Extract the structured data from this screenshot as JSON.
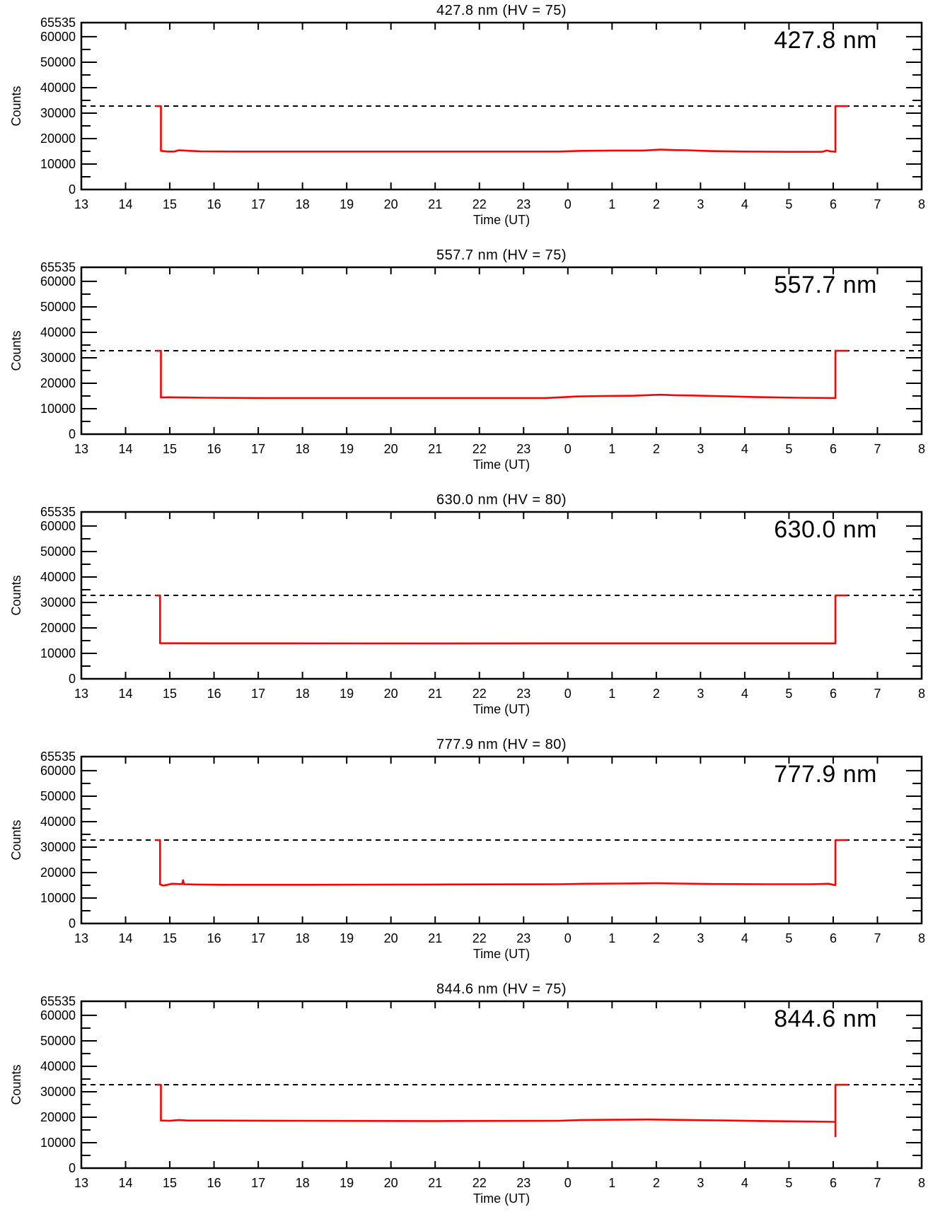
{
  "figure": {
    "background": "#ffffff",
    "axis_color": "#000000",
    "trace_color": "#ff0000",
    "x_span_hours": 19,
    "x_unit": "hours after 13:00 UT",
    "x_tick_labels": [
      "13",
      "14",
      "15",
      "16",
      "17",
      "18",
      "19",
      "20",
      "21",
      "22",
      "23",
      "0",
      "1",
      "2",
      "3",
      "4",
      "5",
      "6",
      "7",
      "8"
    ],
    "y_tick_values": [
      0,
      10000,
      20000,
      30000,
      40000,
      50000,
      60000,
      65535
    ],
    "y_tick_labels": [
      "0",
      "10000",
      "20000",
      "30000",
      "40000",
      "50000",
      "60000",
      "65535"
    ],
    "y_minor_step": 5000,
    "ylim": [
      0,
      65535
    ]
  },
  "chart_data": [
    {
      "type": "line",
      "title": "427.8 nm (HV = 75)",
      "panel_label": "427.8 nm",
      "xlabel": "Time (UT)",
      "ylabel": "Counts",
      "ylim": [
        0,
        65535
      ],
      "threshold": 32767,
      "grid": false,
      "series": [
        {
          "name": "counts",
          "color": "#ff0000",
          "points": [
            [
              1.7,
              32767
            ],
            [
              1.8,
              32767
            ],
            [
              1.8,
              15200
            ],
            [
              1.95,
              14900
            ],
            [
              2.1,
              14900
            ],
            [
              2.2,
              15400
            ],
            [
              2.45,
              15200
            ],
            [
              2.7,
              15000
            ],
            [
              3.5,
              14900
            ],
            [
              6.0,
              14900
            ],
            [
              9.0,
              14900
            ],
            [
              10.8,
              14900
            ],
            [
              11.3,
              15200
            ],
            [
              12.0,
              15300
            ],
            [
              12.7,
              15300
            ],
            [
              13.1,
              15700
            ],
            [
              13.4,
              15500
            ],
            [
              13.7,
              15400
            ],
            [
              14.2,
              15100
            ],
            [
              15.0,
              14900
            ],
            [
              16.0,
              14800
            ],
            [
              16.75,
              14800
            ],
            [
              16.85,
              15300
            ],
            [
              16.95,
              15000
            ],
            [
              17.05,
              14800
            ],
            [
              17.05,
              32767
            ],
            [
              17.32,
              32767
            ]
          ]
        }
      ]
    },
    {
      "type": "line",
      "title": "557.7 nm (HV = 75)",
      "panel_label": "557.7 nm",
      "xlabel": "Time (UT)",
      "ylabel": "Counts",
      "ylim": [
        0,
        65535
      ],
      "threshold": 32767,
      "grid": false,
      "series": [
        {
          "name": "counts",
          "color": "#ff0000",
          "points": [
            [
              1.7,
              32767
            ],
            [
              1.8,
              32767
            ],
            [
              1.8,
              14400
            ],
            [
              2.0,
              14500
            ],
            [
              2.3,
              14400
            ],
            [
              2.8,
              14300
            ],
            [
              4.0,
              14200
            ],
            [
              7.0,
              14200
            ],
            [
              10.5,
              14200
            ],
            [
              11.2,
              14800
            ],
            [
              11.8,
              15000
            ],
            [
              12.5,
              15100
            ],
            [
              13.1,
              15500
            ],
            [
              13.4,
              15300
            ],
            [
              13.8,
              15200
            ],
            [
              14.3,
              15000
            ],
            [
              15.2,
              14600
            ],
            [
              16.2,
              14300
            ],
            [
              17.05,
              14200
            ],
            [
              17.05,
              32767
            ],
            [
              17.32,
              32767
            ]
          ]
        }
      ]
    },
    {
      "type": "line",
      "title": "630.0 nm (HV = 80)",
      "panel_label": "630.0 nm",
      "xlabel": "Time (UT)",
      "ylabel": "Counts",
      "ylim": [
        0,
        65535
      ],
      "threshold": 32767,
      "grid": false,
      "series": [
        {
          "name": "counts",
          "color": "#ff0000",
          "points": [
            [
              1.7,
              32767
            ],
            [
              1.78,
              32767
            ],
            [
              1.78,
              14000
            ],
            [
              3.0,
              13950
            ],
            [
              8.0,
              13900
            ],
            [
              13.0,
              13950
            ],
            [
              17.05,
              13950
            ],
            [
              17.05,
              32767
            ],
            [
              17.3,
              32767
            ]
          ]
        }
      ]
    },
    {
      "type": "line",
      "title": "777.9 nm (HV = 80)",
      "panel_label": "777.9 nm",
      "xlabel": "Time (UT)",
      "ylabel": "Counts",
      "ylim": [
        0,
        65535
      ],
      "threshold": 32767,
      "grid": false,
      "series": [
        {
          "name": "counts",
          "color": "#ff0000",
          "points": [
            [
              1.7,
              32767
            ],
            [
              1.78,
              32767
            ],
            [
              1.78,
              15300
            ],
            [
              1.85,
              14900
            ],
            [
              1.95,
              15200
            ],
            [
              2.05,
              15600
            ],
            [
              2.2,
              15500
            ],
            [
              2.28,
              15500
            ],
            [
              2.3,
              17000
            ],
            [
              2.32,
              15400
            ],
            [
              2.6,
              15300
            ],
            [
              3.2,
              15200
            ],
            [
              5.0,
              15200
            ],
            [
              8.0,
              15300
            ],
            [
              10.8,
              15400
            ],
            [
              11.4,
              15600
            ],
            [
              12.2,
              15700
            ],
            [
              13.0,
              15800
            ],
            [
              13.5,
              15700
            ],
            [
              14.3,
              15500
            ],
            [
              15.5,
              15400
            ],
            [
              16.5,
              15400
            ],
            [
              16.9,
              15600
            ],
            [
              17.0,
              15200
            ],
            [
              17.05,
              15100
            ],
            [
              17.05,
              32767
            ],
            [
              17.3,
              32767
            ]
          ]
        }
      ]
    },
    {
      "type": "line",
      "title": "844.6 nm (HV = 75)",
      "panel_label": "844.6 nm",
      "xlabel": "Time (UT)",
      "ylabel": "Counts",
      "ylim": [
        0,
        65535
      ],
      "threshold": 32767,
      "grid": false,
      "series": [
        {
          "name": "counts",
          "color": "#ff0000",
          "points": [
            [
              1.72,
              32767
            ],
            [
              1.8,
              32767
            ],
            [
              1.8,
              18700
            ],
            [
              2.0,
              18600
            ],
            [
              2.2,
              18900
            ],
            [
              2.4,
              18700
            ],
            [
              3.0,
              18700
            ],
            [
              5.0,
              18600
            ],
            [
              8.0,
              18500
            ],
            [
              10.8,
              18600
            ],
            [
              11.3,
              18900
            ],
            [
              12.0,
              19000
            ],
            [
              12.8,
              19100
            ],
            [
              13.3,
              19000
            ],
            [
              14.2,
              18800
            ],
            [
              15.5,
              18500
            ],
            [
              16.5,
              18300
            ],
            [
              17.0,
              18200
            ],
            [
              17.05,
              18200
            ],
            [
              17.05,
              12500
            ],
            [
              17.05,
              32767
            ],
            [
              17.32,
              32767
            ]
          ]
        }
      ]
    }
  ]
}
